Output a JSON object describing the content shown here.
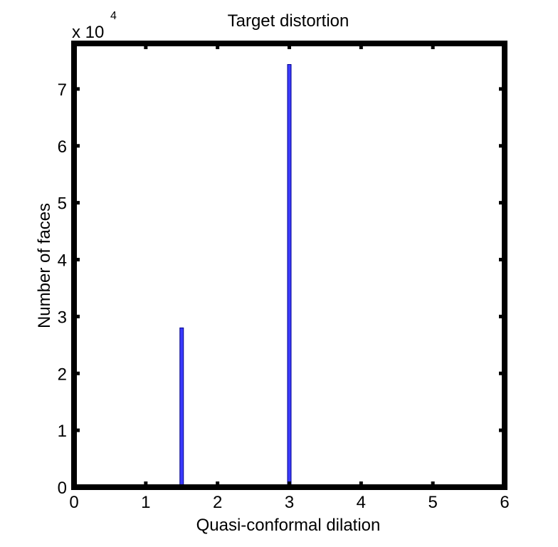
{
  "chart_data": {
    "type": "bar",
    "title": "Target distortion",
    "xlabel": "Quasi-conformal dilation",
    "ylabel": "Number of faces",
    "y_exponent_label": {
      "base": "x 10",
      "exponent": "4"
    },
    "xlim": [
      0,
      6
    ],
    "ylim": [
      0,
      78000
    ],
    "x_ticks": [
      0,
      1,
      2,
      3,
      4,
      5,
      6
    ],
    "x_tick_labels": [
      "0",
      "1",
      "2",
      "3",
      "4",
      "5",
      "6"
    ],
    "y_ticks": [
      0,
      10000,
      20000,
      30000,
      40000,
      50000,
      60000,
      70000
    ],
    "y_tick_labels": [
      "0",
      "1",
      "2",
      "3",
      "4",
      "5",
      "6",
      "7"
    ],
    "grid": false,
    "bars": [
      {
        "x": 1.5,
        "value": 28000
      },
      {
        "x": 3.0,
        "value": 74300
      }
    ],
    "colors": {
      "bar_fill": "#3b3bff",
      "bar_edge": "#00008b",
      "axes": "#000000"
    }
  }
}
